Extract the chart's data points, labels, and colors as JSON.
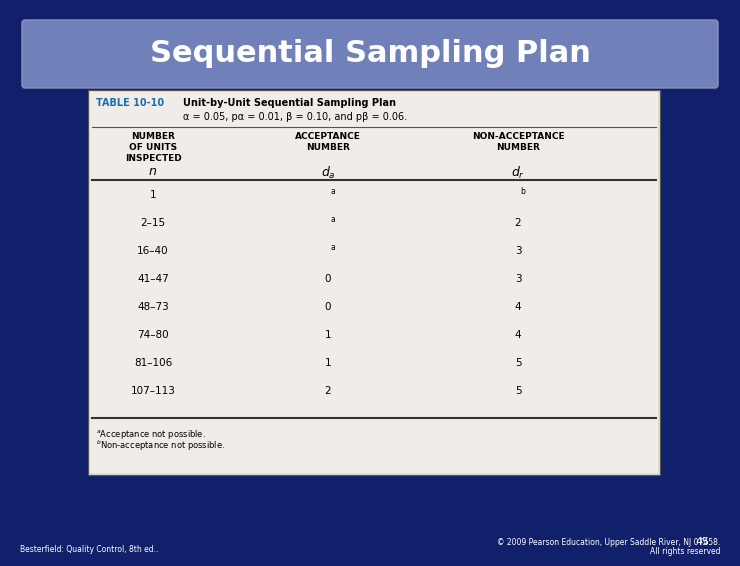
{
  "title": "Sequential Sampling Plan",
  "title_bg_color": "#7080b8",
  "slide_bg_color": "#11206b",
  "table_bg_color": "#e8e8e8",
  "table_title_label": "TABLE 10-10",
  "table_title_text": "Unit-by-Unit Sequential Sampling Plan",
  "table_subtitle": "α = 0.05, pα = 0.01, β = 0.10, and pβ = 0.06.",
  "page_number": "45",
  "footer_left": "Besterfield: Quality Control, 8th ed..",
  "footer_right": "© 2009 Pearson Education, Upper Saddle River, NJ 07458.\nAll rights reserved"
}
